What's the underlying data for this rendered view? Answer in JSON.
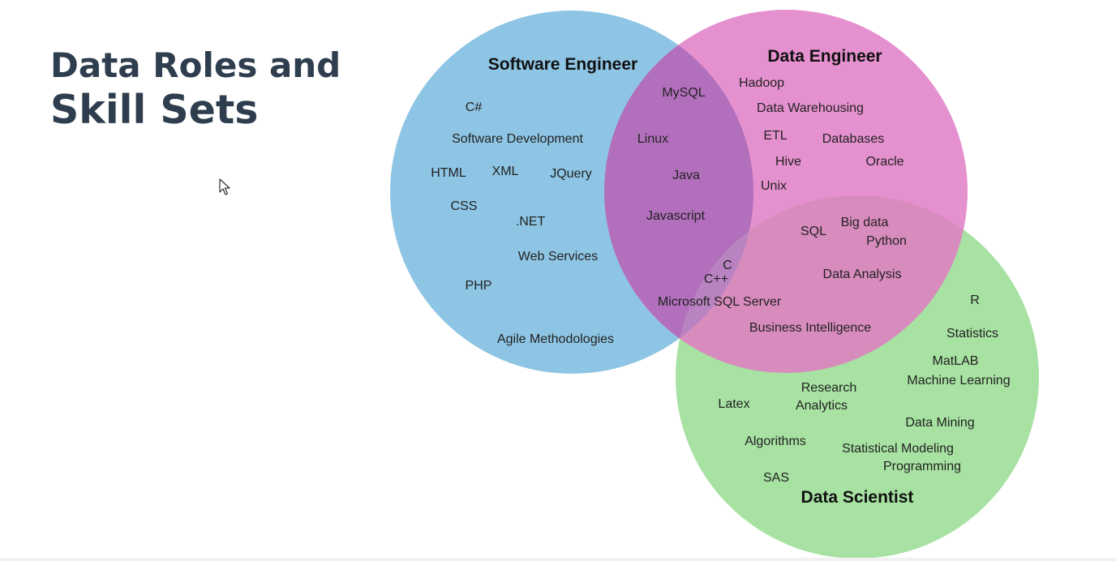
{
  "slide": {
    "title_line1": "Data Roles and",
    "title_line2": "Skill Sets"
  },
  "venn": {
    "circles": [
      {
        "id": "software",
        "title": "Software Engineer",
        "color": "#8ec5e4"
      },
      {
        "id": "data_eng",
        "title": "Data Engineer",
        "color": "#e691cf"
      },
      {
        "id": "data_sci",
        "title": "Data Scientist",
        "color": "#a7e2a2"
      }
    ],
    "overlap_colors": {
      "software_data_eng": "#b26fbc",
      "data_eng_data_sci": "#d88bbd",
      "all_three": "#b983c2"
    },
    "skills": {
      "csharp": "C#",
      "software_development": "Software Development",
      "html": "HTML",
      "xml": "XML",
      "jquery": "JQuery",
      "css": "CSS",
      "dotnet": ".NET",
      "web_services": "Web Services",
      "php": "PHP",
      "agile": "Agile Methodologies",
      "mysql": "MySQL",
      "linux": "Linux",
      "java": "Java",
      "javascript": "Javascript",
      "c": "C",
      "cpp": "C++",
      "ms_sql_server": "Microsoft SQL Server",
      "hadoop": "Hadoop",
      "data_warehousing": "Data Warehousing",
      "etl": "ETL",
      "databases": "Databases",
      "hive": "Hive",
      "oracle": "Oracle",
      "unix": "Unix",
      "sql": "SQL",
      "big_data": "Big data",
      "python": "Python",
      "data_analysis": "Data Analysis",
      "business_intelligence": "Business Intelligence",
      "r": "R",
      "statistics": "Statistics",
      "matlab": "MatLAB",
      "machine_learning": "Machine Learning",
      "research": "Research",
      "analytics": "Analytics",
      "latex": "Latex",
      "data_mining": "Data Mining",
      "algorithms": "Algorithms",
      "statistical_modeling": "Statistical Modeling",
      "programming": "Programming",
      "sas": "SAS"
    }
  }
}
